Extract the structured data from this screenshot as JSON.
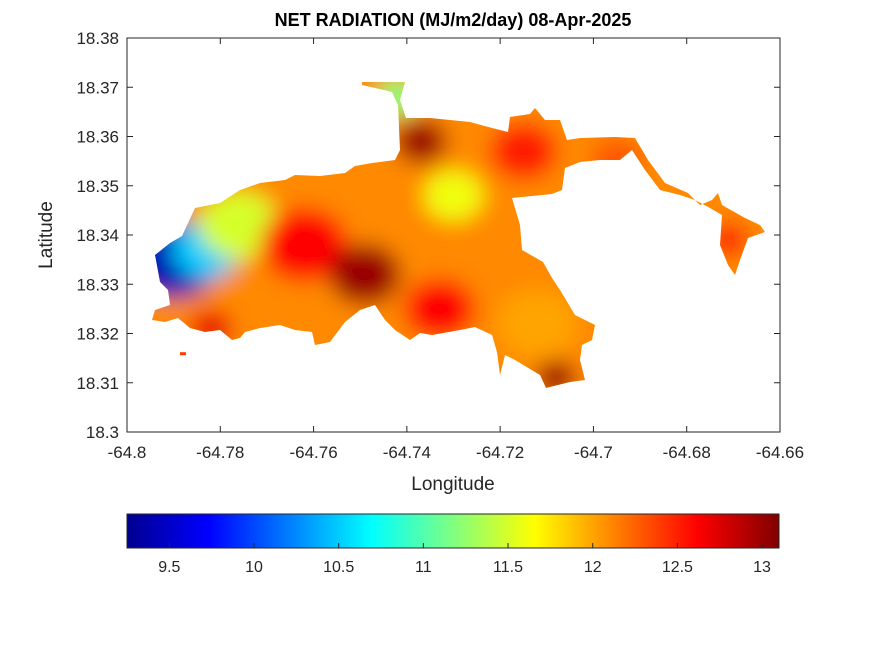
{
  "figure": {
    "title": "NET RADIATION (MJ/m2/day) 08-Apr-2025",
    "xlabel": "Longitude",
    "ylabel": "Latitude"
  },
  "map_data": {
    "type": "filled-contour",
    "variable": "Net radiation",
    "units": "MJ/m2/day",
    "date": "08-Apr-2025",
    "xlim": [
      -64.8,
      -64.66
    ],
    "ylim": [
      18.3,
      18.38
    ],
    "xticks": [
      -64.8,
      -64.78,
      -64.76,
      -64.74,
      -64.72,
      -64.7,
      -64.68,
      -64.66
    ],
    "yticks": [
      18.3,
      18.31,
      18.32,
      18.33,
      18.34,
      18.35,
      18.36,
      18.37,
      18.38
    ],
    "colormap": "jet",
    "grid": false,
    "approx_value_range": [
      9.25,
      13.1
    ],
    "colorbar": {
      "location": "below-axes",
      "ticks": [
        9.5,
        10,
        10.5,
        11,
        11.5,
        12,
        12.5,
        13
      ],
      "clim": [
        9.25,
        13.1
      ]
    },
    "regions": [
      {
        "name": "western tip",
        "lon": -64.79,
        "lat": 18.335,
        "value": 9.4
      },
      {
        "name": "west",
        "lon": -64.783,
        "lat": 18.337,
        "value": 10.5
      },
      {
        "name": "northwest",
        "lon": -64.776,
        "lat": 18.342,
        "value": 11.5
      },
      {
        "name": "central west",
        "lon": -64.762,
        "lat": 18.338,
        "value": 12.6
      },
      {
        "name": "central",
        "lon": -64.749,
        "lat": 18.332,
        "value": 13.0
      },
      {
        "name": "north-central peak",
        "lon": -64.737,
        "lat": 18.359,
        "value": 13.0
      },
      {
        "name": "north-central hills",
        "lon": -64.73,
        "lat": 18.348,
        "value": 11.6
      },
      {
        "name": "north spur",
        "lon": -64.742,
        "lat": 18.368,
        "value": 11.2
      },
      {
        "name": "south-central",
        "lon": -64.733,
        "lat": 18.325,
        "value": 12.6
      },
      {
        "name": "northeast",
        "lon": -64.715,
        "lat": 18.357,
        "value": 12.5
      },
      {
        "name": "southeast",
        "lon": -64.712,
        "lat": 18.322,
        "value": 12.0
      },
      {
        "name": "southeast point",
        "lon": -64.708,
        "lat": 18.311,
        "value": 13.0
      },
      {
        "name": "eastern strip",
        "lon": -64.695,
        "lat": 18.355,
        "value": 12.3
      },
      {
        "name": "eastern point",
        "lon": -64.671,
        "lat": 18.339,
        "value": 12.5
      },
      {
        "name": "southwest coast",
        "lon": -64.782,
        "lat": 18.321,
        "value": 12.7
      }
    ]
  }
}
